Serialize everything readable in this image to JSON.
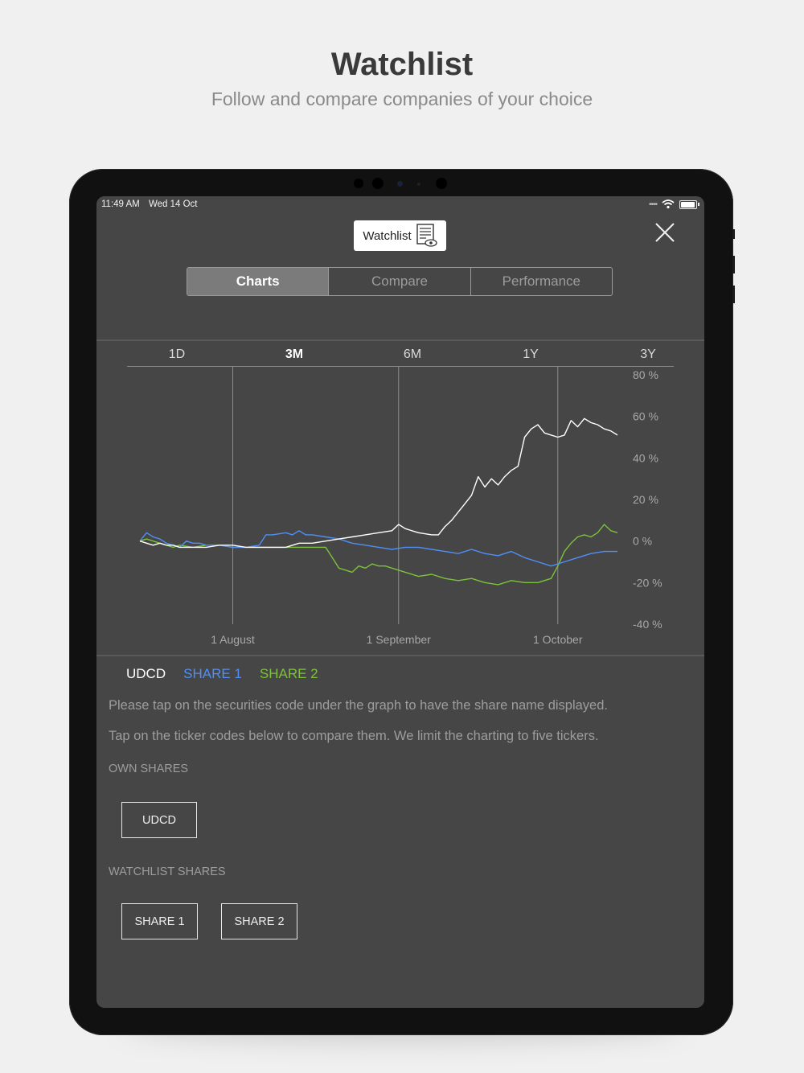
{
  "hero": {
    "title": "Watchlist",
    "subtitle": "Follow and compare companies of your choice"
  },
  "status_bar": {
    "time": "11:49 AM",
    "date": "Wed 14 Oct"
  },
  "header": {
    "badge_label": "Watchlist",
    "badge_icon": "watchlist-eye-icon",
    "close_icon": "close-icon"
  },
  "tabs": [
    {
      "label": "Charts",
      "active": true
    },
    {
      "label": "Compare",
      "active": false
    },
    {
      "label": "Performance",
      "active": false
    }
  ],
  "ranges": [
    {
      "label": "1D",
      "active": false
    },
    {
      "label": "3M",
      "active": true
    },
    {
      "label": "6M",
      "active": false
    },
    {
      "label": "1Y",
      "active": false
    },
    {
      "label": "3Y",
      "active": false
    }
  ],
  "chart_data": {
    "type": "line",
    "ylim": [
      -40,
      80
    ],
    "yticks": [
      80,
      60,
      40,
      20,
      0,
      -20,
      -40
    ],
    "ytick_labels": [
      "80 %",
      "60 %",
      "40 %",
      "20 %",
      "0 %",
      "-20 %",
      "-40 %"
    ],
    "xlim": [
      0,
      72
    ],
    "xticks": [
      {
        "label": "1 August",
        "x": 14
      },
      {
        "label": "1 September",
        "x": 39
      },
      {
        "label": "1 October",
        "x": 63
      }
    ],
    "grid": "vertical at x ticks",
    "series": [
      {
        "name": "UDCD",
        "color": "#ffffff",
        "x": [
          0,
          1,
          2,
          3,
          4,
          5,
          6,
          8,
          10,
          12,
          14,
          16,
          18,
          20,
          22,
          24,
          26,
          28,
          30,
          32,
          34,
          36,
          38,
          39,
          40,
          41,
          42,
          44,
          45,
          46,
          47,
          48,
          49,
          50,
          51,
          52,
          53,
          54,
          55,
          56,
          57,
          58,
          59,
          60,
          61,
          62,
          63,
          64,
          65,
          66,
          67,
          68,
          69,
          70,
          71,
          72
        ],
        "y": [
          0,
          -1,
          -2,
          -1,
          -2,
          -2,
          -3,
          -3,
          -3,
          -2,
          -2,
          -3,
          -3,
          -3,
          -3,
          -1,
          -1,
          0,
          1,
          2,
          3,
          4,
          5,
          8,
          6,
          5,
          4,
          3,
          3,
          7,
          10,
          14,
          18,
          22,
          31,
          26,
          30,
          27,
          31,
          34,
          36,
          50,
          54,
          56,
          52,
          51,
          50,
          51,
          58,
          55,
          59,
          57,
          56,
          54,
          53,
          51
        ]
      },
      {
        "name": "SHARE 1",
        "color": "#4f8ff7",
        "x": [
          0,
          1,
          2,
          3,
          4,
          5,
          6,
          7,
          8,
          9,
          10,
          12,
          14,
          16,
          18,
          19,
          20,
          22,
          23,
          24,
          25,
          26,
          28,
          30,
          32,
          34,
          36,
          38,
          40,
          42,
          44,
          46,
          48,
          50,
          52,
          54,
          56,
          58,
          60,
          62,
          64,
          66,
          68,
          70,
          72
        ],
        "y": [
          0,
          4,
          2,
          1,
          -1,
          -2,
          -3,
          0,
          -1,
          -1,
          -2,
          -2,
          -3,
          -3,
          -2,
          3,
          3,
          4,
          3,
          5,
          3,
          3,
          2,
          1,
          -1,
          -2,
          -3,
          -4,
          -3,
          -3,
          -4,
          -5,
          -6,
          -4,
          -6,
          -7,
          -5,
          -8,
          -10,
          -12,
          -10,
          -8,
          -6,
          -5,
          -5
        ]
      },
      {
        "name": "SHARE 2",
        "color": "#7cc23a",
        "x": [
          0,
          1,
          2,
          3,
          4,
          5,
          6,
          8,
          10,
          12,
          14,
          16,
          18,
          20,
          22,
          24,
          26,
          28,
          29,
          30,
          31,
          32,
          33,
          34,
          35,
          36,
          37,
          38,
          40,
          42,
          44,
          46,
          48,
          50,
          52,
          54,
          56,
          58,
          60,
          62,
          63,
          64,
          65,
          66,
          67,
          68,
          69,
          70,
          71,
          72
        ],
        "y": [
          0,
          1,
          0,
          -1,
          -2,
          -3,
          -2,
          -3,
          -2,
          -2,
          -3,
          -3,
          -3,
          -3,
          -3,
          -3,
          -3,
          -3,
          -8,
          -13,
          -14,
          -15,
          -12,
          -13,
          -11,
          -12,
          -12,
          -13,
          -15,
          -17,
          -16,
          -18,
          -19,
          -18,
          -20,
          -21,
          -19,
          -20,
          -20,
          -18,
          -12,
          -5,
          -1,
          2,
          3,
          2,
          4,
          8,
          5,
          4
        ]
      }
    ]
  },
  "legend": [
    {
      "label": "UDCD",
      "color": "#ffffff"
    },
    {
      "label": "SHARE 1",
      "color": "#4f8ff7"
    },
    {
      "label": "SHARE 2",
      "color": "#7cc23a"
    }
  ],
  "info": {
    "hint1": "Please tap on the securities code under the graph to have the share name displayed.",
    "hint2": "Tap on the ticker codes below to compare them. We limit the charting to five tickers.",
    "own_shares_heading": "OWN SHARES",
    "own_shares": [
      "UDCD"
    ],
    "watchlist_heading": "WATCHLIST SHARES",
    "watchlist_shares": [
      "SHARE 1",
      "SHARE 2"
    ]
  }
}
